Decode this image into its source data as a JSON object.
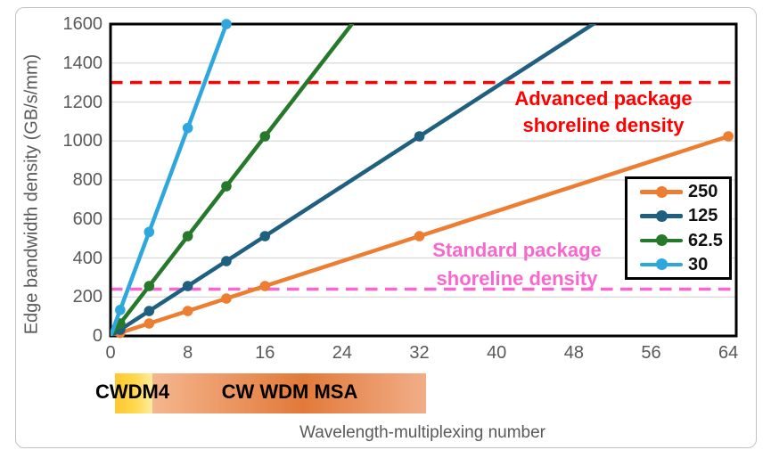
{
  "chart_data": {
    "type": "line",
    "title": "",
    "xlabel": "Wavelength-multiplexing number",
    "ylabel": "Edge bandwidth density (GB/s/mm)",
    "xlim": [
      0,
      64.8
    ],
    "ylim": [
      0,
      1600
    ],
    "x_ticks": [
      0,
      8,
      16,
      24,
      32,
      40,
      48,
      56,
      64
    ],
    "y_ticks": [
      0,
      200,
      400,
      600,
      800,
      1000,
      1200,
      1400,
      1600
    ],
    "grid": "horizontal-only",
    "gridline_color": "#D9D9D9",
    "axis_text_color": "#595959",
    "plot_border_color": "#000000",
    "legend_position": "middle-right",
    "series": [
      {
        "name": "250",
        "color": "#ED7D31",
        "x": [
          0,
          1,
          4,
          8,
          12,
          16,
          32,
          64
        ],
        "y": [
          0,
          16,
          64,
          128,
          192,
          256,
          512,
          1024
        ]
      },
      {
        "name": "125",
        "color": "#1F5F7F",
        "x": [
          0,
          1,
          4,
          8,
          12,
          16,
          32,
          64
        ],
        "y": [
          0,
          32,
          128,
          256,
          384,
          512,
          1024,
          2048
        ]
      },
      {
        "name": "62.5",
        "color": "#26792B",
        "x": [
          0,
          1,
          4,
          8,
          12,
          16,
          32
        ],
        "y": [
          0,
          64,
          256,
          512,
          768,
          1024,
          2048
        ]
      },
      {
        "name": "30",
        "color": "#2EA8DC",
        "x": [
          0,
          1,
          4,
          8,
          12
        ],
        "y": [
          0,
          133.3,
          533.3,
          1066.7,
          1600
        ]
      }
    ],
    "reference_lines": [
      {
        "name": "advanced-package",
        "value": 1300,
        "color": "#FF0000",
        "style": "dashed",
        "label_lines": [
          "Advanced package",
          "shoreline density"
        ]
      },
      {
        "name": "standard-package",
        "value": 240,
        "color": "#F967CE",
        "style": "dashed",
        "label_lines": [
          "Standard package",
          "shoreline density"
        ]
      }
    ]
  },
  "bands": {
    "items": [
      {
        "label": "CWDM4",
        "x_range": [
          0.5,
          4.3
        ],
        "colors": [
          "#FFC72F",
          "#FFD94E",
          "#FFEBA0"
        ]
      },
      {
        "label": "CW WDM MSA",
        "x_range": [
          4.3,
          32.7
        ],
        "colors": [
          "#F5B68E",
          "#E2793A",
          "#F2AE88"
        ]
      }
    ]
  }
}
